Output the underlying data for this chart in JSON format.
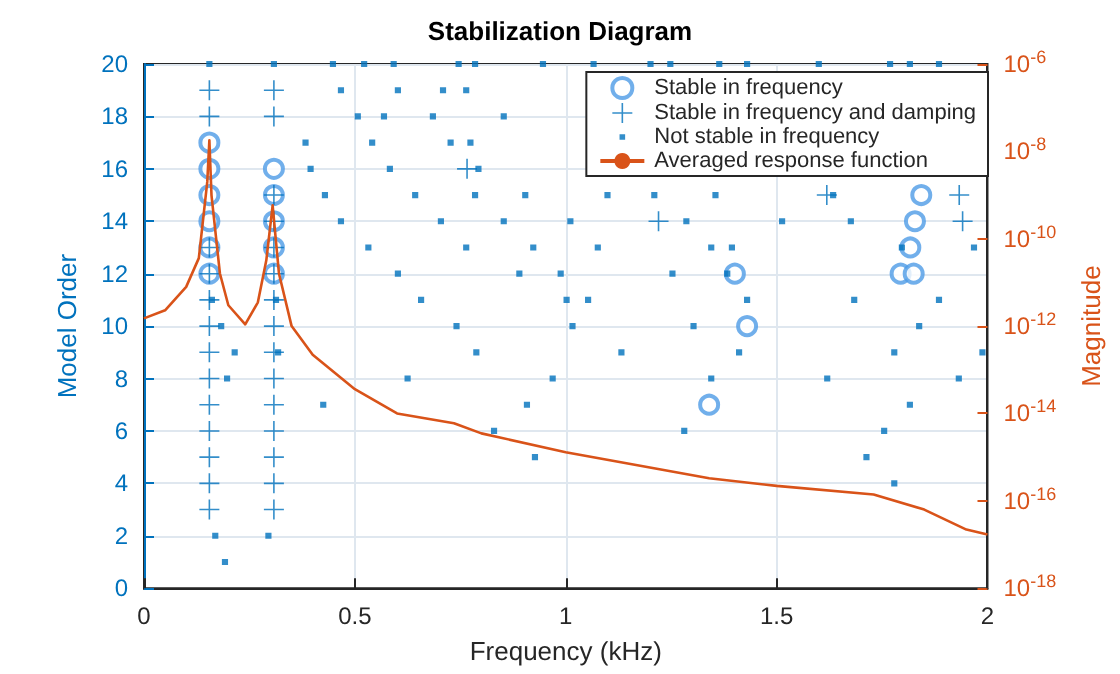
{
  "chart_data": {
    "type": "scatter",
    "title": "Stabilization Diagram",
    "xlabel": "Frequency (kHz)",
    "ylabel": "Model Order",
    "y2label": "Magnitude",
    "xlim": [
      0,
      2
    ],
    "xticks": [
      0,
      0.5,
      1,
      1.5,
      2
    ],
    "ylim": [
      0,
      20
    ],
    "yticks": [
      0,
      2,
      4,
      6,
      8,
      10,
      12,
      14,
      16,
      18,
      20
    ],
    "y2lim": [
      1e-18,
      1e-06
    ],
    "y2ticks": [
      {
        "value": 1e-18,
        "label": "10$^{-18}$"
      },
      {
        "value": 1e-16,
        "label": "10$^{-16}$"
      },
      {
        "value": 1e-14,
        "label": "10$^{-14}$"
      },
      {
        "value": 1e-12,
        "label": "10$^{-12}$"
      },
      {
        "value": 1e-10,
        "label": "10$^{-10}$"
      },
      {
        "value": 1e-08,
        "label": "10$^{-8}$"
      },
      {
        "value": 1e-06,
        "label": "10$^{-6}$"
      }
    ],
    "log": "y2",
    "grid": true,
    "legend": "top right",
    "series": [
      {
        "name": "Stable in frequency",
        "marker": "circle",
        "color": "#4d9be6",
        "x": [
          0.155,
          0.155,
          0.155,
          0.155,
          0.155,
          0.155,
          0.308,
          0.308,
          0.308,
          0.308,
          0.308,
          1.34,
          1.401,
          1.43,
          1.794,
          1.825,
          1.817,
          1.828,
          1.843
        ],
        "values": [
          12,
          13,
          14,
          15,
          16,
          17,
          12,
          13,
          14,
          15,
          16,
          7,
          12,
          10,
          12,
          12,
          13,
          14,
          15
        ]
      },
      {
        "name": "Stable in frequency and damping",
        "marker": "cross",
        "color": "#0072bd",
        "x": [
          0.155,
          0.155,
          0.155,
          0.155,
          0.155,
          0.155,
          0.155,
          0.155,
          0.155,
          0.155,
          0.155,
          0.155,
          0.155,
          0.308,
          0.308,
          0.308,
          0.308,
          0.308,
          0.308,
          0.308,
          0.308,
          0.308,
          0.308,
          0.308,
          0.308,
          0.308,
          0.308,
          0.308,
          0.766,
          1.22,
          1.619,
          1.933,
          1.941
        ],
        "values": [
          3,
          4,
          5,
          6,
          7,
          8,
          9,
          10,
          11,
          12,
          13,
          18,
          19,
          3,
          4,
          5,
          6,
          7,
          8,
          9,
          10,
          11,
          12,
          13,
          14,
          15,
          18,
          19,
          16,
          14,
          15,
          15,
          14
        ]
      },
      {
        "name": "Not stable in frequency",
        "marker": "square",
        "color": "#0072bd",
        "x": [
          0.155,
          0.308,
          0.448,
          0.522,
          0.592,
          0.746,
          0.785,
          0.946,
          1.066,
          1.201,
          1.248,
          1.364,
          1.43,
          1.6,
          1.769,
          1.816,
          1.885,
          0.467,
          0.602,
          0.709,
          0.764,
          0.507,
          0.569,
          0.685,
          0.853,
          0.383,
          0.541,
          0.727,
          0.774,
          0.395,
          0.583,
          0.793,
          0.429,
          0.643,
          0.785,
          0.904,
          1.099,
          1.21,
          1.355,
          1.634,
          0.467,
          0.704,
          0.853,
          1.011,
          1.286,
          1.513,
          1.676,
          0.532,
          0.764,
          0.923,
          1.076,
          1.345,
          1.394,
          1.797,
          1.968,
          0.602,
          0.89,
          0.988,
          1.253,
          1.383,
          0.161,
          0.313,
          0.657,
          1.002,
          1.053,
          1.43,
          1.684,
          1.885,
          0.183,
          0.741,
          1.016,
          1.303,
          1.838,
          0.215,
          0.318,
          0.788,
          1.132,
          1.411,
          1.779,
          1.988,
          0.197,
          0.625,
          0.969,
          1.345,
          1.62,
          1.932,
          0.425,
          0.908,
          1.816,
          0.83,
          1.281,
          1.755,
          0.927,
          1.713,
          1.779,
          0.169,
          0.295,
          0.192
        ],
        "values": [
          20,
          20,
          20,
          20,
          20,
          20,
          20,
          20,
          20,
          20,
          20,
          20,
          20,
          20,
          20,
          20,
          20,
          19,
          19,
          19,
          19,
          18,
          18,
          18,
          18,
          17,
          17,
          17,
          17,
          16,
          16,
          16,
          15,
          15,
          15,
          15,
          15,
          15,
          15,
          15,
          14,
          14,
          14,
          14,
          14,
          14,
          14,
          13,
          13,
          13,
          13,
          13,
          13,
          13,
          13,
          12,
          12,
          12,
          12,
          12,
          11,
          11,
          11,
          11,
          11,
          11,
          11,
          11,
          10,
          10,
          10,
          10,
          10,
          9,
          9,
          9,
          9,
          9,
          9,
          9,
          8,
          8,
          8,
          8,
          8,
          8,
          7,
          7,
          7,
          6,
          6,
          6,
          5,
          5,
          4,
          2,
          2,
          1
        ]
      },
      {
        "name": "Averaged response function",
        "type": "line",
        "axis": "y2",
        "marker": "none",
        "line_style": "solid",
        "color": "#d95319",
        "x": [
          0,
          0.05,
          0.1,
          0.13,
          0.15,
          0.155,
          0.16,
          0.18,
          0.2,
          0.24,
          0.27,
          0.29,
          0.305,
          0.32,
          0.35,
          0.4,
          0.5,
          0.6,
          0.735,
          0.8,
          1.0,
          1.34,
          1.5,
          1.73,
          1.85,
          1.95,
          2.0
        ],
        "values": [
          1.5e-12,
          2.3e-12,
          7.9e-12,
          3.6e-11,
          2e-09,
          1.8e-08,
          1e-09,
          1.6e-11,
          3e-12,
          1.1e-12,
          3.5e-12,
          3.2e-11,
          5.8e-10,
          1.6e-11,
          1e-12,
          2.2e-13,
          3.6e-14,
          1e-14,
          6e-15,
          3.5e-15,
          1.3e-15,
          3.3e-16,
          2.2e-16,
          1.4e-16,
          6.3e-17,
          2.2e-17,
          1.7e-17
        ]
      }
    ]
  }
}
